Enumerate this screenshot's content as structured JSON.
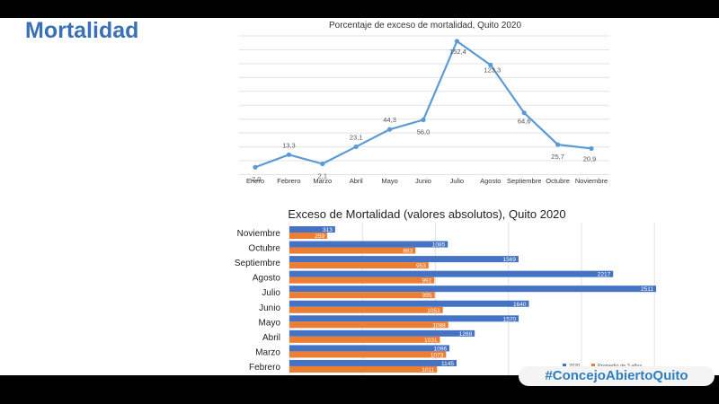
{
  "slide": {
    "title": "Mortalidad",
    "hashtag": "#ConcejoAbiertoQuito"
  },
  "chart_data": [
    {
      "type": "line",
      "title": "Porcentaje de exceso de mortalidad, Quito 2020",
      "categories": [
        "Enero",
        "Febrero",
        "Marzo",
        "Abril",
        "Mayo",
        "Junio",
        "Julio",
        "Agosto",
        "Septiembre",
        "Octubre",
        "Noviembre"
      ],
      "values": [
        -2.0,
        13.3,
        2.1,
        23.1,
        44.3,
        56.0,
        152.4,
        123.3,
        64.6,
        25.7,
        20.9
      ],
      "value_labels": [
        "-2,0",
        "13,3",
        "2,1",
        "23,1",
        "44,3",
        "56,0",
        "152,4",
        "123,3",
        "64,6",
        "25,7",
        "20,9"
      ],
      "ylim": [
        -10,
        160
      ],
      "grid": true,
      "color": "#5b9bd5"
    },
    {
      "type": "bar",
      "orientation": "horizontal",
      "title": "Exceso de Mortalidad (valores absolutos), Quito 2020",
      "categories": [
        "Noviembre",
        "Octubre",
        "Septiembre",
        "Agosto",
        "Julio",
        "Junio",
        "Mayo",
        "Abril",
        "Marzo",
        "Febrero"
      ],
      "series": [
        {
          "name": "2020",
          "color": "#4472c4",
          "values": [
            313,
            1085,
            1569,
            2217,
            2511,
            1640,
            1570,
            1269,
            1096,
            1145
          ]
        },
        {
          "name": "Promedio de 3 años",
          "color": "#ed7d31",
          "values": [
            259,
            863,
            953,
            992,
            995,
            1051,
            1088,
            1031,
            1073,
            1011
          ]
        }
      ],
      "xlim": [
        0,
        2500
      ],
      "legend": "bottom-right"
    }
  ]
}
